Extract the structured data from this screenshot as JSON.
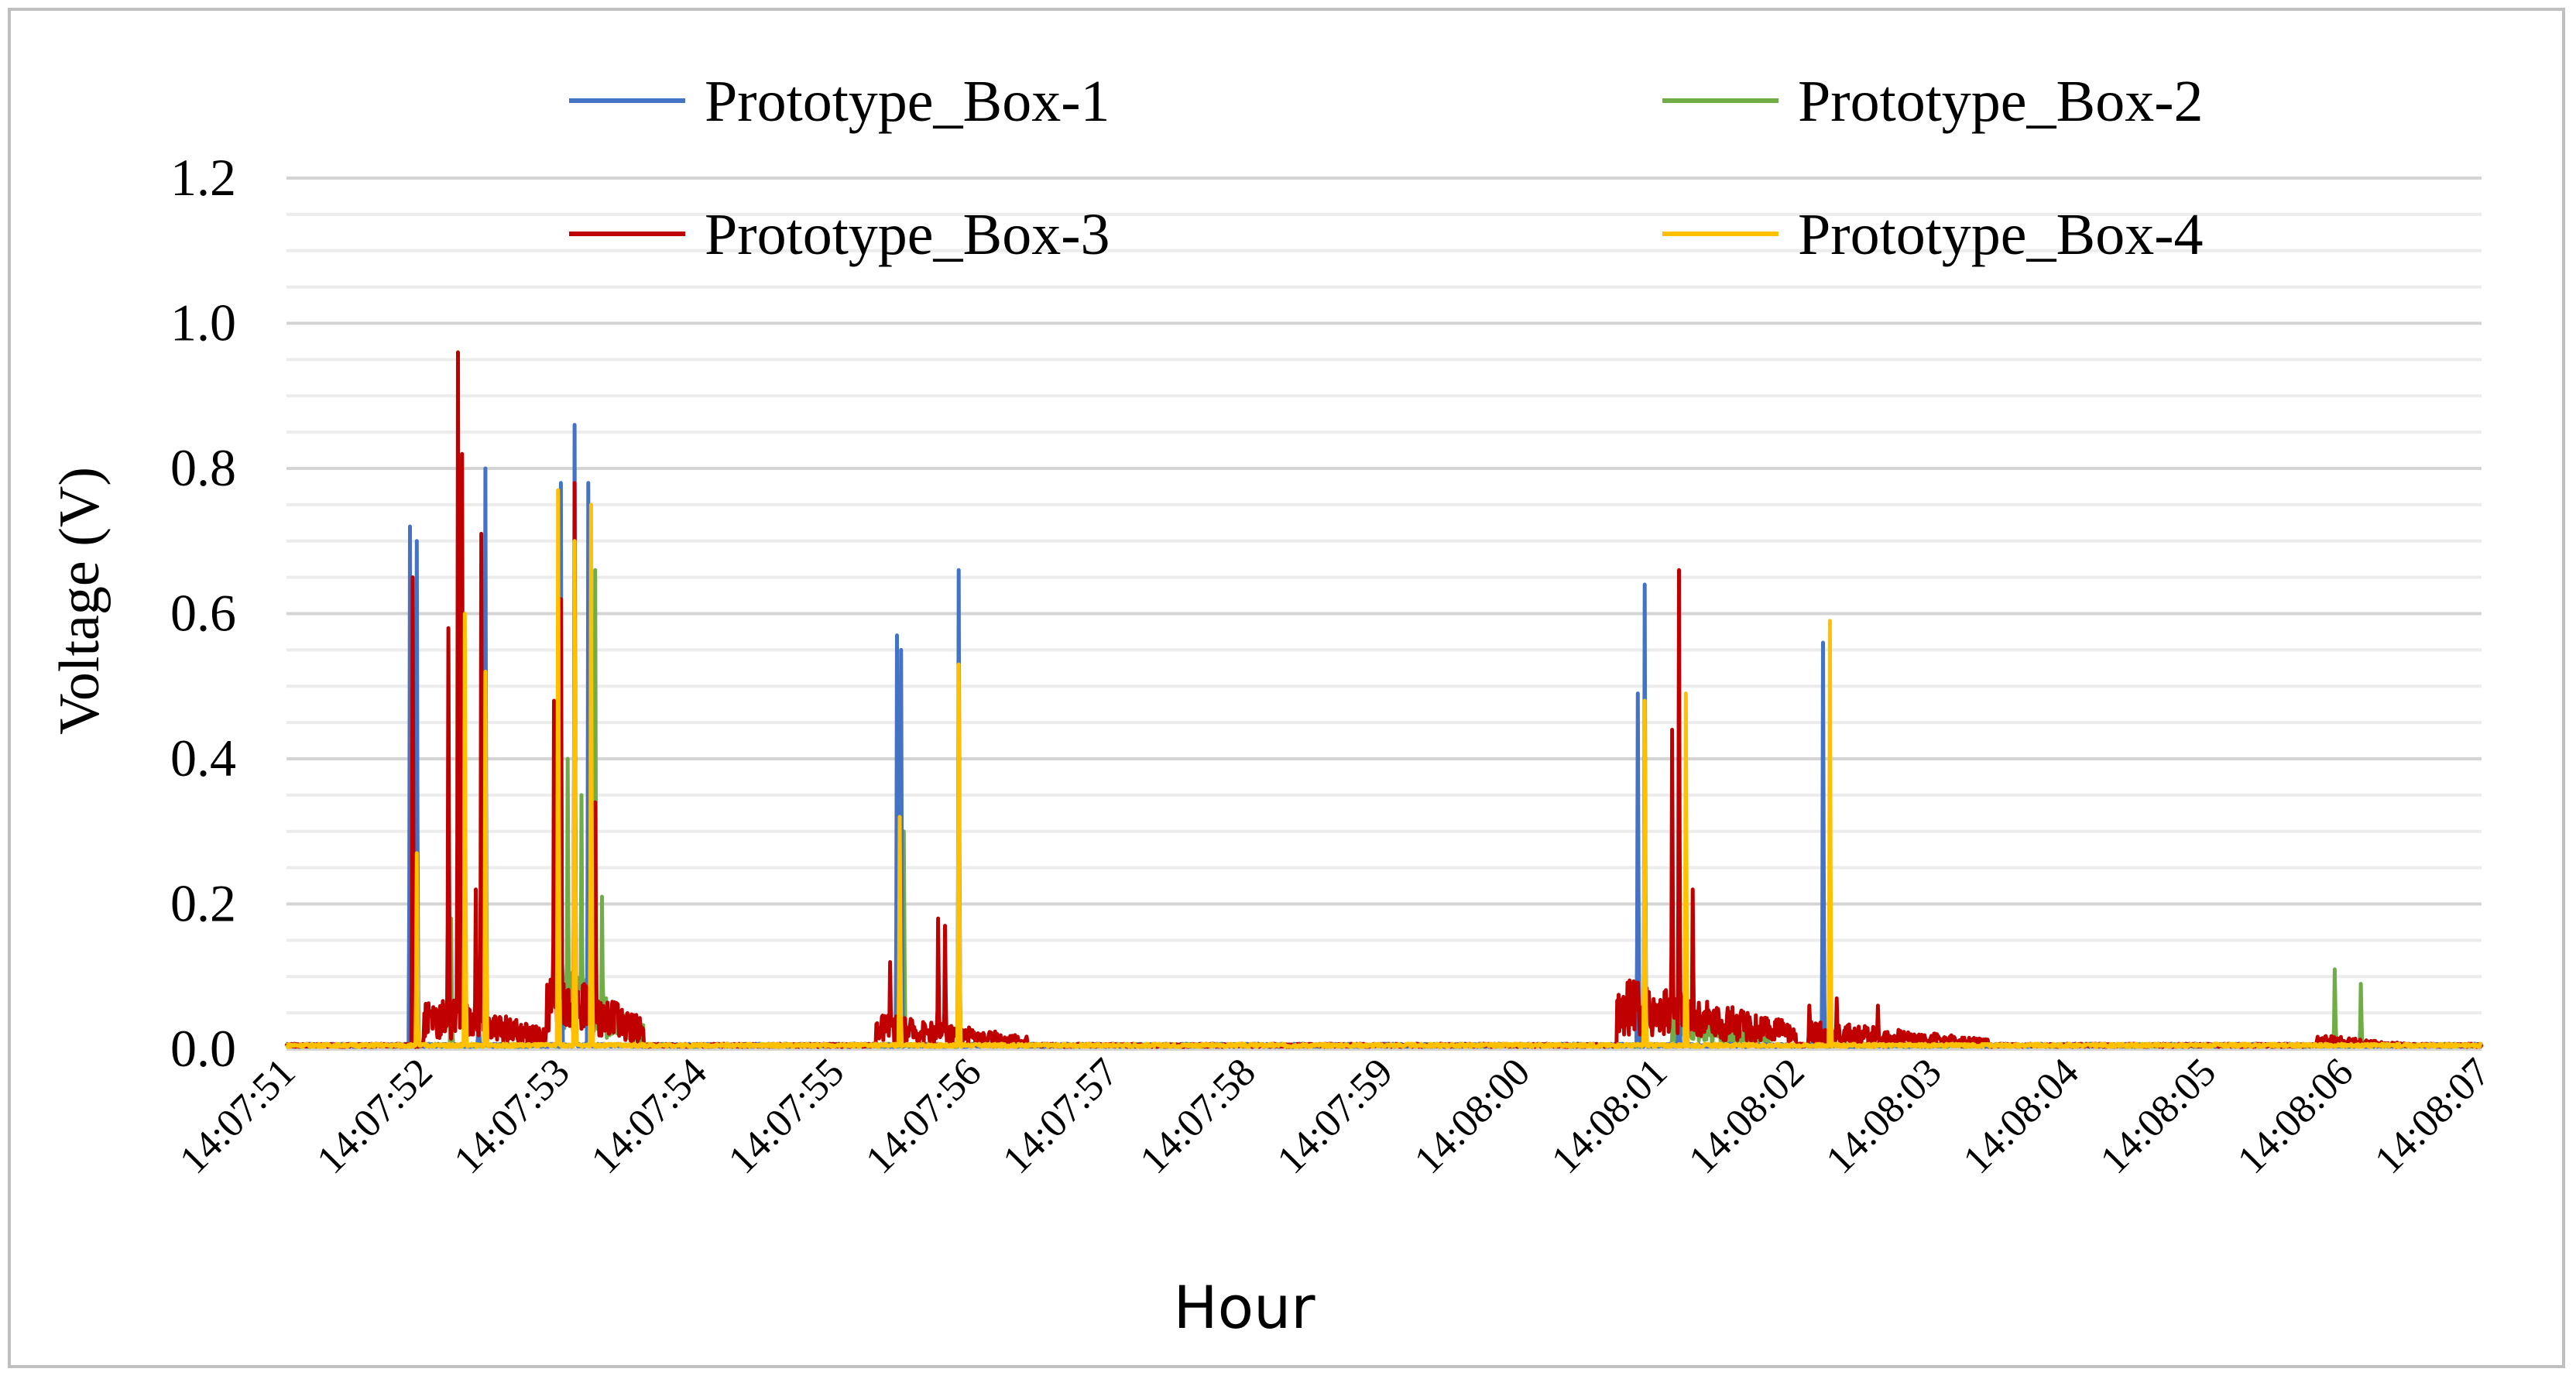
{
  "chart_data": {
    "type": "line",
    "title": "",
    "xlabel": "Hour",
    "ylabel": "Voltage (V)",
    "ylim": [
      0,
      1.2
    ],
    "yticks": [
      "0.0",
      "0.2",
      "0.4",
      "0.6",
      "0.8",
      "1.0",
      "1.2"
    ],
    "y_minor_step": 0.05,
    "x_range_seconds": [
      0,
      16
    ],
    "x_tick_labels": [
      "14:07:51",
      "14:07:52",
      "14:07:53",
      "14:07:54",
      "14:07:55",
      "14:07:56",
      "14:07:57",
      "14:07:58",
      "14:07:59",
      "14:08:00",
      "14:08:01",
      "14:08:02",
      "14:08:03",
      "14:08:04",
      "14:08:05",
      "14:08:06",
      "14:08:07"
    ],
    "grid": true,
    "legend_position": "top",
    "baseline": 0.005,
    "series": [
      {
        "name": "Prototype_Box-1",
        "color": "#4472c4",
        "spikes": [
          [
            0.9,
            0.72
          ],
          [
            0.95,
            0.7
          ],
          [
            1.4,
            0.05
          ],
          [
            1.45,
            0.8
          ],
          [
            2.0,
            0.78
          ],
          [
            2.1,
            0.86
          ],
          [
            2.2,
            0.78
          ],
          [
            4.45,
            0.57
          ],
          [
            4.48,
            0.55
          ],
          [
            4.9,
            0.66
          ],
          [
            9.85,
            0.49
          ],
          [
            9.9,
            0.64
          ],
          [
            10.15,
            0.1
          ],
          [
            11.2,
            0.56
          ]
        ],
        "clusters": []
      },
      {
        "name": "Prototype_Box-2",
        "color": "#70ad47",
        "spikes": [
          [
            1.2,
            0.18
          ],
          [
            1.45,
            0.55
          ],
          [
            2.05,
            0.4
          ],
          [
            2.15,
            0.35
          ],
          [
            2.25,
            0.66
          ],
          [
            2.3,
            0.21
          ],
          [
            4.5,
            0.3
          ],
          [
            4.9,
            0.48
          ],
          [
            9.9,
            0.47
          ],
          [
            10.15,
            0.28
          ],
          [
            11.2,
            0.25
          ],
          [
            14.93,
            0.11
          ],
          [
            15.12,
            0.09
          ]
        ],
        "clusters": [
          [
            2.0,
            2.6,
            0.12
          ],
          [
            10.1,
            10.8,
            0.06
          ]
        ]
      },
      {
        "name": "Prototype_Box-3",
        "color": "#c00000",
        "spikes": [
          [
            0.92,
            0.65
          ],
          [
            1.18,
            0.58
          ],
          [
            1.25,
            0.96
          ],
          [
            1.28,
            0.82
          ],
          [
            1.38,
            0.22
          ],
          [
            1.42,
            0.71
          ],
          [
            1.95,
            0.48
          ],
          [
            2.0,
            0.62
          ],
          [
            2.1,
            0.78
          ],
          [
            2.25,
            0.34
          ],
          [
            4.4,
            0.12
          ],
          [
            4.75,
            0.18
          ],
          [
            4.8,
            0.17
          ],
          [
            9.8,
            0.06
          ],
          [
            10.1,
            0.44
          ],
          [
            10.15,
            0.66
          ],
          [
            10.25,
            0.22
          ],
          [
            11.1,
            0.06
          ],
          [
            11.3,
            0.07
          ],
          [
            11.6,
            0.06
          ]
        ],
        "clusters": [
          [
            1.0,
            1.9,
            0.08
          ],
          [
            1.9,
            2.6,
            0.12
          ],
          [
            4.3,
            5.4,
            0.05
          ],
          [
            9.7,
            11.0,
            0.1
          ],
          [
            11.1,
            12.4,
            0.04
          ],
          [
            14.8,
            15.5,
            0.02
          ]
        ]
      },
      {
        "name": "Prototype_Box-4",
        "color": "#ffc000",
        "spikes": [
          [
            0.95,
            0.27
          ],
          [
            1.3,
            0.6
          ],
          [
            1.45,
            0.52
          ],
          [
            1.98,
            0.77
          ],
          [
            2.1,
            0.7
          ],
          [
            2.22,
            0.75
          ],
          [
            4.47,
            0.32
          ],
          [
            4.9,
            0.53
          ],
          [
            9.9,
            0.48
          ],
          [
            10.2,
            0.49
          ],
          [
            11.25,
            0.59
          ]
        ],
        "clusters": []
      }
    ]
  }
}
